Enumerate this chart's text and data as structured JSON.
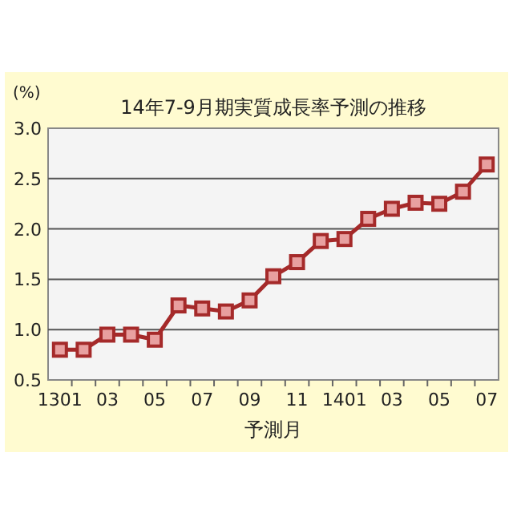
{
  "chart_data": {
    "type": "line",
    "title": "14年7-9月期実質成長率予測の推移",
    "xlabel": "予測月",
    "ylabel": "(%)",
    "categories": [
      "1301",
      null,
      "03",
      null,
      "05",
      null,
      "07",
      null,
      "09",
      null,
      "11",
      null,
      "1401",
      null,
      "03",
      null,
      "05",
      null,
      "07"
    ],
    "series": [
      {
        "color": "#a52a2a",
        "values": [
          0.8,
          0.8,
          0.95,
          0.95,
          0.9,
          1.24,
          1.21,
          1.18,
          1.29,
          1.53,
          1.67,
          1.88,
          1.9,
          2.1,
          2.2,
          2.26,
          2.25,
          2.37,
          2.64
        ]
      }
    ],
    "ylim": [
      0.5,
      3.0
    ],
    "yticks": [
      {
        "value": 0.5,
        "label": "0.5"
      },
      {
        "value": 1,
        "label": "1.0"
      },
      {
        "value": 1.5,
        "label": "1.5"
      },
      {
        "value": 2,
        "label": "2.0"
      },
      {
        "value": 2.5,
        "label": "2.5"
      },
      {
        "value": 3,
        "label": "3.0"
      }
    ],
    "grid": "y",
    "marker": "square",
    "line_style": "solid"
  }
}
